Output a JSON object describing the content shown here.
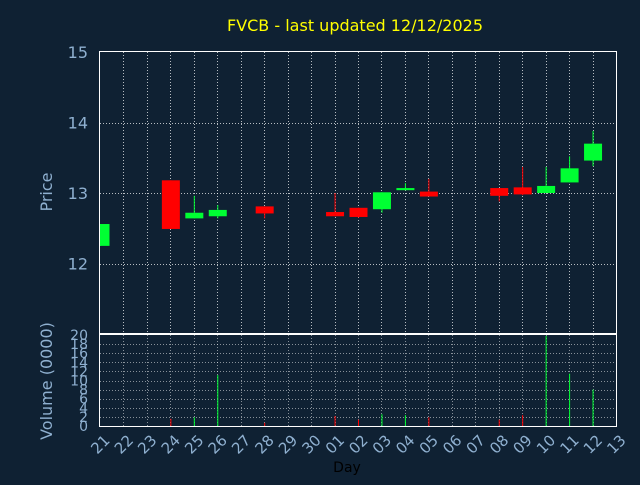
{
  "chart_data": [
    {
      "type": "candlestick",
      "title": "FVCB - last updated 12/12/2025",
      "ylabel": "Price",
      "xlabel": "",
      "ylim": [
        11.0,
        15.0
      ],
      "yticks": [
        "12",
        "13",
        "14",
        "15"
      ],
      "grid": true,
      "colors": {
        "background": "#0f2133",
        "plot_border": "#ffffff",
        "grid": "#ffffff",
        "title": "#ffff00",
        "axis_text": "#8fb0d0",
        "up": "#00ff33",
        "down": "#ff0000"
      },
      "candles": [
        {
          "day": "21",
          "open": 12.25,
          "high": 12.56,
          "low": 12.25,
          "close": 12.56
        },
        {
          "day": "24",
          "open": 13.18,
          "high": 13.18,
          "low": 12.49,
          "close": 12.49
        },
        {
          "day": "25",
          "open": 12.64,
          "high": 12.96,
          "low": 12.64,
          "close": 12.72
        },
        {
          "day": "26",
          "open": 12.67,
          "high": 12.83,
          "low": 12.64,
          "close": 12.76
        },
        {
          "day": "28",
          "open": 12.81,
          "high": 12.81,
          "low": 12.64,
          "close": 12.71
        },
        {
          "day": "01",
          "open": 12.73,
          "high": 13.0,
          "low": 12.67,
          "close": 12.67
        },
        {
          "day": "02",
          "open": 12.79,
          "high": 12.79,
          "low": 12.65,
          "close": 12.66
        },
        {
          "day": "03",
          "open": 12.77,
          "high": 13.01,
          "low": 12.72,
          "close": 13.01
        },
        {
          "day": "04",
          "open": 13.04,
          "high": 13.14,
          "low": 13.04,
          "close": 13.07
        },
        {
          "day": "05",
          "open": 13.02,
          "high": 13.2,
          "low": 12.95,
          "close": 12.95
        },
        {
          "day": "08",
          "open": 13.07,
          "high": 13.07,
          "low": 12.88,
          "close": 12.96
        },
        {
          "day": "09",
          "open": 13.08,
          "high": 13.37,
          "low": 12.97,
          "close": 12.98
        },
        {
          "day": "10",
          "open": 13.0,
          "high": 13.37,
          "low": 13.0,
          "close": 13.1
        },
        {
          "day": "11",
          "open": 13.15,
          "high": 13.52,
          "low": 13.15,
          "close": 13.35
        },
        {
          "day": "12",
          "open": 13.46,
          "high": 13.88,
          "low": 13.38,
          "close": 13.7
        }
      ]
    },
    {
      "type": "bar",
      "ylabel": "Volume (0000)",
      "xlabel": "Day",
      "ylim": [
        0,
        20
      ],
      "yticks": [
        "0",
        "2",
        "4",
        "6",
        "8",
        "10",
        "12",
        "14",
        "16",
        "18",
        "20"
      ],
      "categories": [
        "21",
        "22",
        "23",
        "24",
        "25",
        "26",
        "27",
        "28",
        "29",
        "30",
        "01",
        "02",
        "03",
        "04",
        "05",
        "06",
        "07",
        "08",
        "09",
        "10",
        "11",
        "12",
        "13"
      ],
      "values": [
        0,
        0,
        0,
        1.6,
        1.9,
        11.2,
        0,
        0.7,
        0,
        0,
        2.2,
        1.4,
        2.6,
        2.4,
        1.9,
        0,
        0,
        1.4,
        2.4,
        19.8,
        11.5,
        8.0,
        0
      ],
      "bar_colors": [
        "",
        "",
        "",
        "#ff0000",
        "#00ff33",
        "#00ff33",
        "",
        "#ff0000",
        "",
        "",
        "#ff0000",
        "#ff0000",
        "#00ff33",
        "#00ff33",
        "#ff0000",
        "",
        "",
        "#ff0000",
        "#ff0000",
        "#00ff33",
        "#00ff33",
        "#00ff33",
        ""
      ]
    }
  ]
}
